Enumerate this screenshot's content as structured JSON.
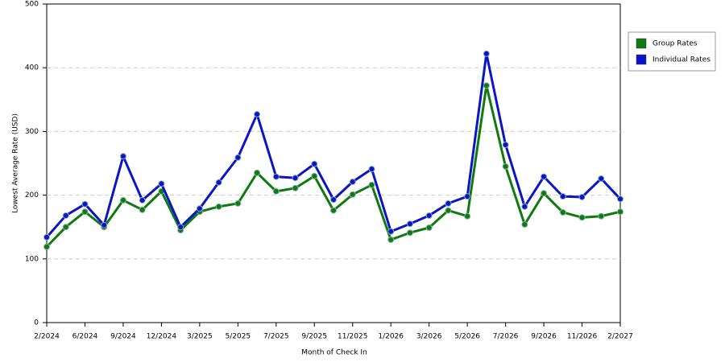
{
  "chart_data": {
    "type": "line",
    "x_label": "Month of Check In",
    "y_label": "Lowest Average Rate (USD)",
    "categories": [
      "2/2024",
      null,
      "6/2024",
      null,
      "9/2024",
      null,
      "12/2024",
      null,
      "3/2025",
      null,
      "5/2025",
      null,
      "7/2025",
      null,
      "9/2025",
      null,
      "11/2025",
      null,
      "1/2026",
      null,
      "3/2026",
      null,
      "5/2026",
      null,
      "7/2026",
      null,
      "9/2026",
      null,
      "11/2026",
      null,
      "2/2027"
    ],
    "series": [
      {
        "name": "Group Rates",
        "color": "#0f7a0f",
        "values": [
          119,
          150,
          174,
          150,
          192,
          177,
          206,
          145,
          174,
          182,
          187,
          235,
          206,
          211,
          230,
          176,
          201,
          216,
          130,
          141,
          149,
          176,
          167,
          372,
          245,
          154,
          203,
          173,
          165,
          167,
          174
        ]
      },
      {
        "name": "Individual Rates",
        "color": "#0a14c8",
        "values": [
          134,
          168,
          186,
          153,
          261,
          192,
          218,
          150,
          179,
          220,
          259,
          327,
          229,
          227,
          249,
          193,
          221,
          241,
          143,
          155,
          168,
          187,
          198,
          422,
          279,
          182,
          229,
          198,
          197,
          226,
          194
        ]
      }
    ],
    "ylim": [
      0,
      500
    ],
    "yticks": [
      0,
      100,
      200,
      300,
      400,
      500
    ],
    "grid": true
  }
}
